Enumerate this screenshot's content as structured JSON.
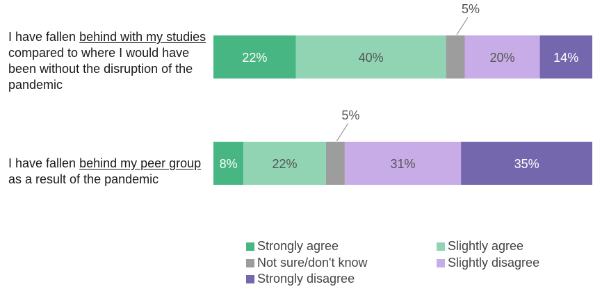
{
  "chart_data": {
    "type": "bar",
    "orientation": "horizontal",
    "stacked": true,
    "title": "",
    "xlabel": "",
    "ylabel": "",
    "xlim": [
      0,
      101
    ],
    "categories": [
      {
        "pre": "I have fallen ",
        "emph": "behind with my studies",
        "post": " compared to where I would have been without the disruption of the pandemic"
      },
      {
        "pre": "I have fallen ",
        "emph": "behind my peer group",
        "post": " as a result of the pandemic"
      }
    ],
    "series": [
      {
        "name": "Strongly agree",
        "color": "#47b683",
        "values": [
          22,
          8
        ],
        "labels": [
          "22%",
          "8%"
        ]
      },
      {
        "name": "Slightly agree",
        "color": "#90d4b4",
        "values": [
          40,
          22
        ],
        "labels": [
          "40%",
          "22%"
        ]
      },
      {
        "name": "Not sure/don't know",
        "color": "#9d9d9d",
        "values": [
          5,
          5
        ],
        "labels": [
          "5%",
          "5%"
        ]
      },
      {
        "name": "Slightly disagree",
        "color": "#c8ace7",
        "values": [
          20,
          31
        ],
        "labels": [
          "20%",
          "31%"
        ]
      },
      {
        "name": "Strongly disagree",
        "color": "#7467ae",
        "values": [
          14,
          35
        ],
        "labels": [
          "14%",
          "35%"
        ]
      }
    ],
    "legend": {
      "position": "bottom",
      "order": [
        "Strongly agree",
        "Slightly agree",
        "Not sure/don't know",
        "Slightly disagree",
        "Strongly disagree"
      ]
    },
    "grid": false
  }
}
